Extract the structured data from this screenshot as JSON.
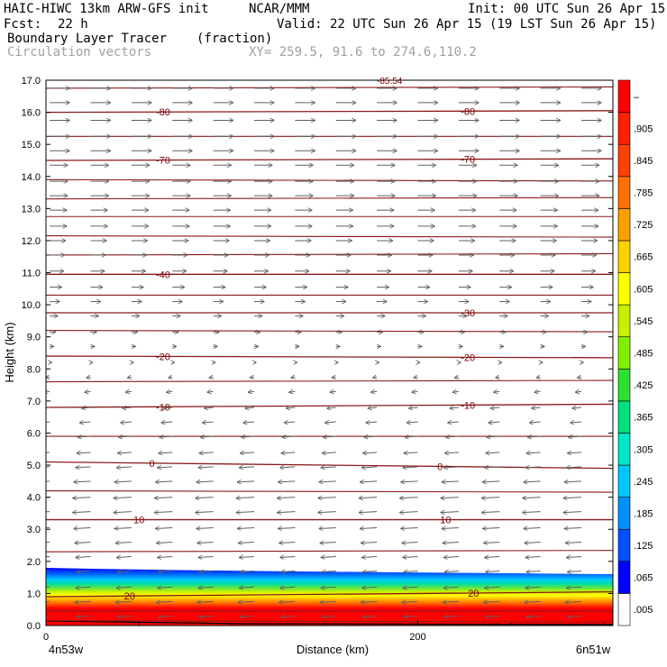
{
  "header": {
    "model": "HAIC-HIWC 13km ARW-GFS init",
    "org": "NCAR/MMM",
    "init": "Init: 00 UTC Sun 26 Apr 15",
    "fcst_label": "Fcst:",
    "fcst_value": "22 h",
    "valid": "Valid: 22 UTC Sun 26 Apr 15 (19 LST Sun 26 Apr 15)",
    "field": "Boundary Layer Tracer",
    "units": "(fraction)",
    "vectors": "Circulation vectors",
    "xy": "XY= 259.5, 91.6 to 274.6,110.2"
  },
  "chart_data": {
    "type": "heatmap",
    "xlabel": "Distance (km)",
    "ylabel": "Height (km)",
    "xlim": [
      0,
      305
    ],
    "ylim": [
      0,
      17
    ],
    "x_ticks": [
      {
        "v": 0,
        "label": "0"
      },
      {
        "v": 200,
        "label": "200"
      }
    ],
    "x_end_labels": {
      "left": "4n53w",
      "right": "6n51w"
    },
    "y_ticks": [
      "0.0",
      "1.0",
      "2.0",
      "3.0",
      "4.0",
      "5.0",
      "6.0",
      "7.0",
      "8.0",
      "9.0",
      "10.0",
      "11.0",
      "12.0",
      "13.0",
      "14.0",
      "15.0",
      "16.0",
      "17.0"
    ],
    "colorbar": {
      "labels": [
        ".005",
        ".065",
        ".125",
        ".185",
        ".245",
        ".305",
        ".365",
        ".425",
        ".485",
        ".545",
        ".605",
        ".665",
        ".725",
        ".785",
        ".845",
        ".905",
        "–"
      ],
      "colors": [
        "#ffffff",
        "#0000ff",
        "#0050ff",
        "#0090ff",
        "#00c8ff",
        "#00e8c8",
        "#00e080",
        "#30e030",
        "#80f000",
        "#c8f000",
        "#ffff00",
        "#ffd000",
        "#ffa000",
        "#ff7000",
        "#ff4000",
        "#ff2000",
        "#ff0000"
      ]
    },
    "tracer_layer": {
      "top_left_km": 1.8,
      "top_right_km": 1.6,
      "blue_band_top_km": [
        1.8,
        1.6
      ],
      "blue_band_bottom_km": [
        1.55,
        1.35
      ],
      "yellow_km": [
        1.35,
        1.05
      ],
      "red_top_km": [
        1.15,
        0.9
      ]
    },
    "temperature_contours": [
      {
        "label": "20",
        "y_left": 0.9,
        "y_right": 1.05,
        "label_x": [
          45,
          230
        ]
      },
      {
        "label": "10",
        "y_left": 3.3,
        "y_right": 3.3,
        "label_x": [
          50,
          215
        ]
      },
      {
        "label": "0",
        "y_left": 5.1,
        "y_right": 4.9,
        "label_x": [
          57,
          212
        ]
      },
      {
        "label": "-10",
        "y_left": 6.8,
        "y_right": 6.9,
        "label_x": [
          63,
          227
        ]
      },
      {
        "label": "-20",
        "y_left": 8.4,
        "y_right": 8.35,
        "label_x": [
          63,
          227
        ]
      },
      {
        "label": "-30",
        "y_left": 9.75,
        "y_right": 9.75,
        "label_x": [
          227
        ]
      },
      {
        "label": "-40",
        "y_left": 10.95,
        "y_right": 10.95,
        "label_x": [
          63
        ]
      },
      {
        "label": "-70",
        "y_left": 14.5,
        "y_right": 14.55,
        "label_x": [
          63,
          227
        ]
      },
      {
        "label": "-80",
        "y_left": 16.0,
        "y_right": 16.05,
        "label_x": [
          63,
          227
        ]
      }
    ],
    "extra_contours_km": [
      0.15,
      0.45,
      2.3,
      4.2,
      5.9,
      7.6,
      9.2,
      10.3,
      11.55,
      12.15,
      12.75,
      13.3,
      13.9,
      15.25,
      16.75
    ],
    "top_label": "-85.54",
    "vector_field": {
      "x_spacing_km": 22,
      "rows": [
        {
          "z": 16.75,
          "u": 1
        },
        {
          "z": 16.3,
          "u": 1
        },
        {
          "z": 15.75,
          "u": 1
        },
        {
          "z": 15.25,
          "u": 1
        },
        {
          "z": 14.8,
          "u": 1
        },
        {
          "z": 14.35,
          "u": 0.9
        },
        {
          "z": 13.85,
          "u": 0.9
        },
        {
          "z": 13.4,
          "u": 0.9
        },
        {
          "z": 12.95,
          "u": 0.85
        },
        {
          "z": 12.45,
          "u": 0.85
        },
        {
          "z": 12.0,
          "u": 0.8
        },
        {
          "z": 11.55,
          "u": 0.75
        },
        {
          "z": 11.05,
          "u": 0.7
        },
        {
          "z": 10.55,
          "u": 0.6
        },
        {
          "z": 10.1,
          "u": 0.5
        },
        {
          "z": 9.65,
          "u": 0.4
        },
        {
          "z": 9.15,
          "u": 0.3
        },
        {
          "z": 8.7,
          "u": 0.2
        },
        {
          "z": 8.2,
          "u": 0.1
        },
        {
          "z": 7.75,
          "u": -0.2
        },
        {
          "z": 7.3,
          "u": -0.3
        },
        {
          "z": 6.8,
          "u": -0.45
        },
        {
          "z": 6.35,
          "u": -0.55
        },
        {
          "z": 5.9,
          "u": -0.65
        },
        {
          "z": 5.4,
          "u": -0.7
        },
        {
          "z": 4.95,
          "u": -0.75
        },
        {
          "z": 4.5,
          "u": -0.85
        },
        {
          "z": 4.0,
          "u": -0.9
        },
        {
          "z": 3.55,
          "u": -0.9
        },
        {
          "z": 3.05,
          "u": -0.85
        },
        {
          "z": 2.6,
          "u": -0.8
        },
        {
          "z": 2.15,
          "u": -0.75
        },
        {
          "z": 1.7,
          "u": -0.7
        },
        {
          "z": 1.2,
          "u": -0.75
        },
        {
          "z": 0.75,
          "u": -0.8
        },
        {
          "z": 0.3,
          "u": -0.7
        }
      ]
    }
  }
}
